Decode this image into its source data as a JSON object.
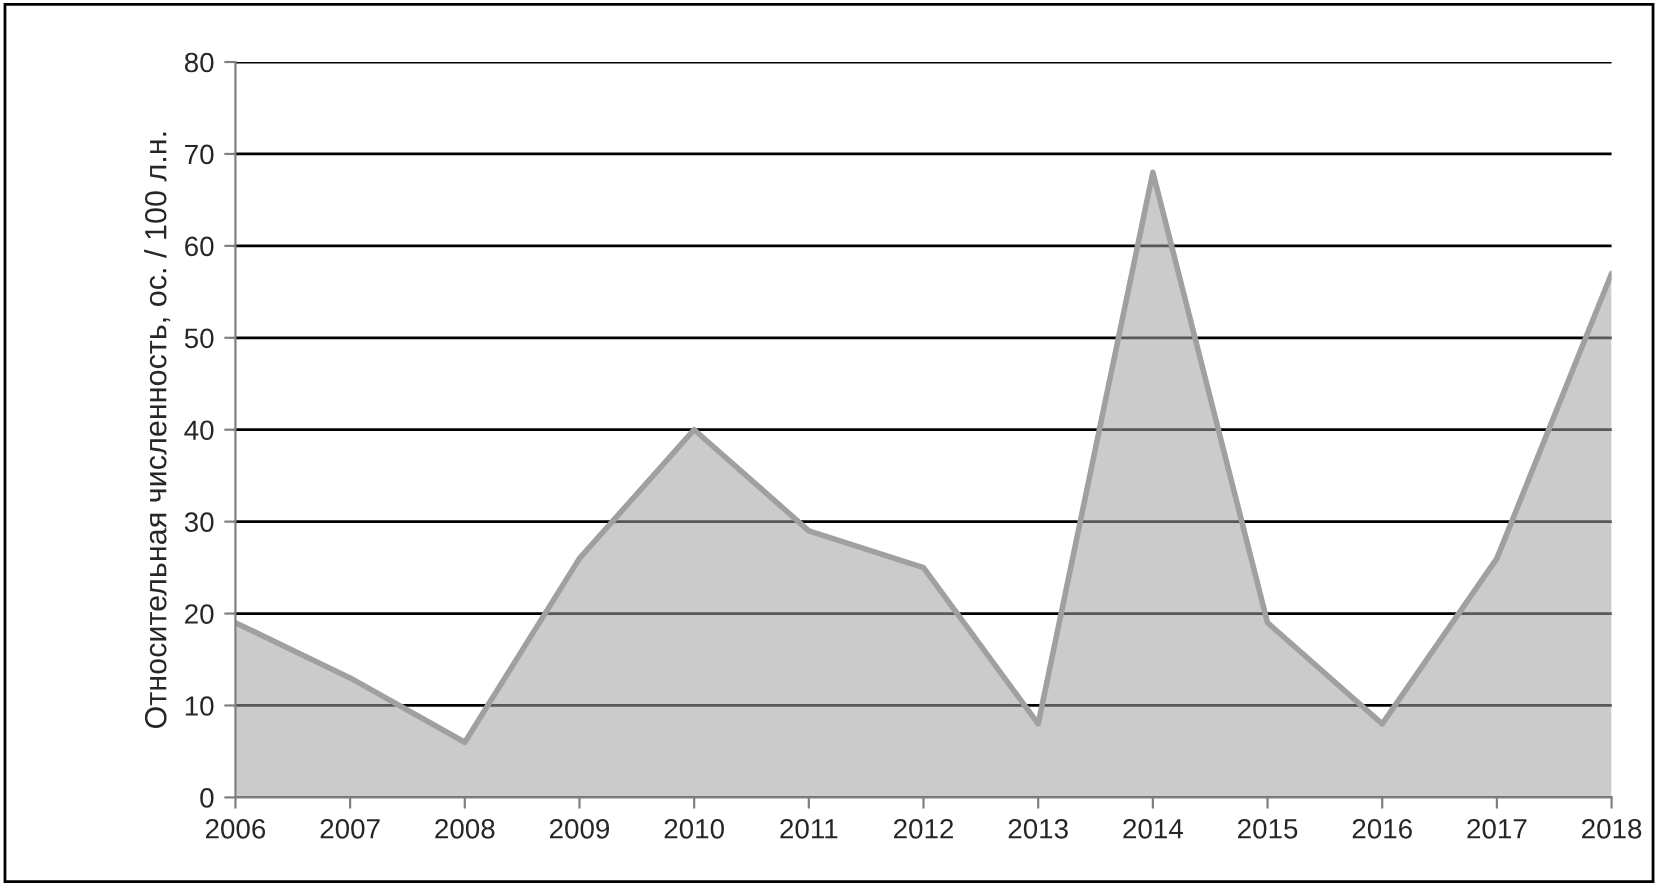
{
  "chart_data": {
    "type": "area",
    "ylabel": "Относительная численность, ос. / 100 л.н.",
    "categories": [
      "2006",
      "2007",
      "2008",
      "2009",
      "2010",
      "2011",
      "2012",
      "2013",
      "2014",
      "2015",
      "2016",
      "2017",
      "2018"
    ],
    "series": [
      {
        "color": "#a0a0a0",
        "values": [
          19,
          13,
          6,
          26,
          40,
          29,
          25,
          8,
          68,
          19,
          8,
          26,
          57
        ]
      }
    ],
    "ylim": [
      0,
      80
    ],
    "yticks": [
      0,
      10,
      20,
      30,
      40,
      50,
      60,
      70,
      80
    ],
    "grid": "y",
    "marker": "none",
    "line_style": "solid"
  }
}
